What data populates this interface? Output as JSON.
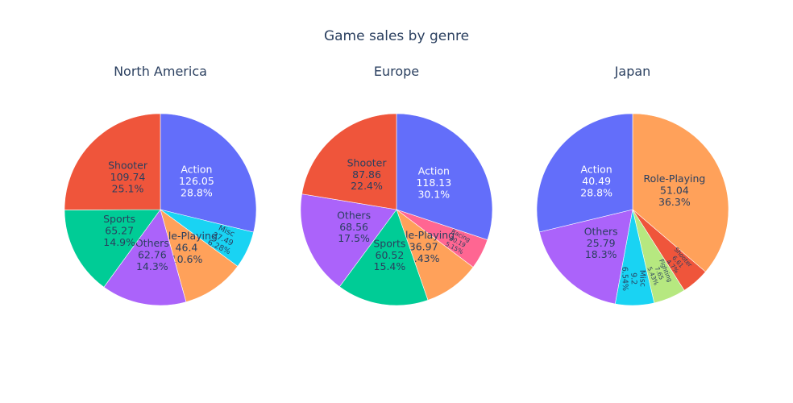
{
  "chart_data": {
    "type": "pie",
    "title": "Game sales by genre",
    "colors": {
      "Action": "#636efa",
      "Shooter": "#ef553b",
      "Sports": "#00cc96",
      "Others": "#ab63fa",
      "Role-Playing": "#ffa15a",
      "Misc": "#19d3f3",
      "Racing": "#ff6692",
      "Fighting": "#b6e880"
    },
    "pies": [
      {
        "name": "North America",
        "slices": [
          {
            "label": "Action",
            "value": 126.05,
            "percent": "28.8%"
          },
          {
            "label": "Misc",
            "value": 27.49,
            "percent": "6.28%"
          },
          {
            "label": "Role-Playing",
            "value": 46.4,
            "percent": "10.6%"
          },
          {
            "label": "Others",
            "value": 62.76,
            "percent": "14.3%"
          },
          {
            "label": "Sports",
            "value": 65.27,
            "percent": "14.9%"
          },
          {
            "label": "Shooter",
            "value": 109.74,
            "percent": "25.1%"
          }
        ]
      },
      {
        "name": "Europe",
        "slices": [
          {
            "label": "Action",
            "value": 118.13,
            "percent": "30.1%"
          },
          {
            "label": "Racing",
            "value": 20.19,
            "percent": "5.15%"
          },
          {
            "label": "Role-Playing",
            "value": 36.97,
            "percent": "9.43%"
          },
          {
            "label": "Sports",
            "value": 60.52,
            "percent": "15.4%"
          },
          {
            "label": "Others",
            "value": 68.56,
            "percent": "17.5%"
          },
          {
            "label": "Shooter",
            "value": 87.86,
            "percent": "22.4%"
          }
        ]
      },
      {
        "name": "Japan",
        "slices": [
          {
            "label": "Role-Playing",
            "value": 51.04,
            "percent": "36.3%"
          },
          {
            "label": "Shooter",
            "value": 6.61,
            "percent": "4.7%"
          },
          {
            "label": "Fighting",
            "value": 7.65,
            "percent": "5.43%"
          },
          {
            "label": "Misc",
            "value": 9.2,
            "percent": "6.54%"
          },
          {
            "label": "Others",
            "value": 25.79,
            "percent": "18.3%"
          },
          {
            "label": "Action",
            "value": 40.49,
            "percent": "28.8%"
          }
        ]
      }
    ]
  }
}
